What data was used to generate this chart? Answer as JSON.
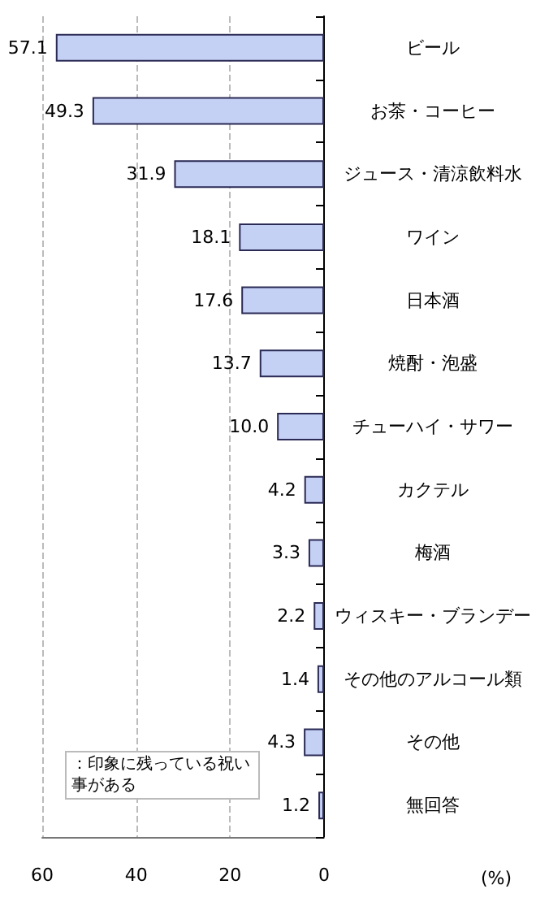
{
  "chart_data": {
    "type": "bar",
    "orientation": "horizontal",
    "categories": [
      "ビール",
      "お茶・コーヒー",
      "ジュース・清涼飲料水",
      "ワイン",
      "日本酒",
      "焼酎・泡盛",
      "チューハイ・サワー",
      "カクテル",
      "梅酒",
      "ウィスキー・ブランデー",
      "その他のアルコール類",
      "その他",
      "無回答"
    ],
    "values": [
      57.1,
      49.3,
      31.9,
      18.1,
      17.6,
      13.7,
      10.0,
      4.2,
      3.3,
      2.2,
      1.4,
      4.3,
      1.2
    ],
    "value_labels": [
      "57.1",
      "49.3",
      "31.9",
      "18.1",
      "17.6",
      "13.7",
      "10.0",
      "4.2",
      "3.3",
      "2.2",
      "1.4",
      "4.3",
      "1.2"
    ],
    "color": "#c5d0f5",
    "xlim": [
      60,
      0
    ],
    "xticks": [
      60,
      40,
      20,
      0
    ],
    "xlabel": "(%)",
    "grid": "x",
    "annotations": [
      "：印象に残っている祝い事がある"
    ]
  }
}
